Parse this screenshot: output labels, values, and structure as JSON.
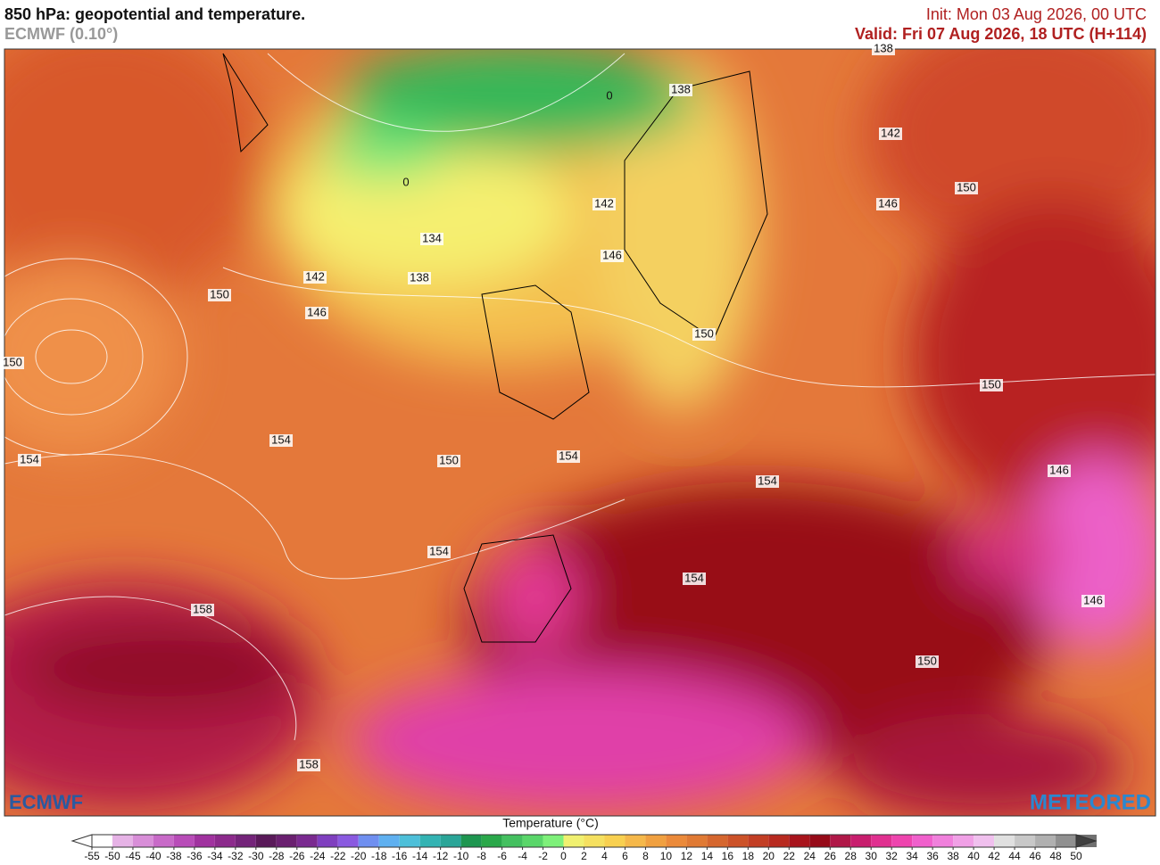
{
  "header": {
    "title": "850 hPa: geopotential and temperature.",
    "subtitle": "ECMWF (0.10°)",
    "init": "Init: Mon 03 Aug 2026, 00 UTC",
    "valid": "Valid: Fri 07 Aug 2026, 18 UTC (H+114)"
  },
  "map": {
    "contour_labels": [
      138,
      0,
      138,
      142,
      0,
      150,
      142,
      146,
      134,
      146,
      142,
      138,
      150,
      146,
      150,
      150,
      150,
      154,
      154,
      150,
      154,
      146,
      154,
      154,
      154,
      146,
      158,
      150,
      158
    ]
  },
  "logos": {
    "left": "ECMWF",
    "right": "METEORED"
  },
  "legend": {
    "title": "Temperature (°C)",
    "ticks": [
      -55,
      -50,
      -45,
      -40,
      -38,
      -36,
      -34,
      -32,
      -30,
      -28,
      -26,
      -24,
      -22,
      -20,
      -18,
      -16,
      -14,
      -12,
      -10,
      -8,
      -6,
      -4,
      -2,
      0,
      2,
      4,
      6,
      8,
      10,
      12,
      14,
      16,
      18,
      20,
      22,
      24,
      26,
      28,
      30,
      32,
      34,
      36,
      38,
      40,
      42,
      44,
      46,
      48,
      50
    ],
    "colors": [
      "#ffffff",
      "#e6b3e6",
      "#d88ed8",
      "#c86ac8",
      "#b84cb8",
      "#a0329f",
      "#8c2a8c",
      "#74247a",
      "#5a1a5a",
      "#6a2070",
      "#7a2a90",
      "#7f3fbf",
      "#8a5ae0",
      "#6f8ff0",
      "#5fb0f0",
      "#4dbfd9",
      "#33b3b3",
      "#2aa598",
      "#1e9650",
      "#2aa84a",
      "#44c060",
      "#5ad66a",
      "#7ef07a",
      "#f0f070",
      "#f5e060",
      "#f8d050",
      "#f5b84a",
      "#f0a040",
      "#eb8a3a",
      "#e07a34",
      "#d5662e",
      "#cc5228",
      "#c23e24",
      "#b82a20",
      "#a8141c",
      "#960a18",
      "#b01848",
      "#c81e6e",
      "#e03090",
      "#ee44ae",
      "#f060cc",
      "#f080dc",
      "#f0a0e6",
      "#f0c0ee",
      "#e0e0e0",
      "#c8c8c8",
      "#b0b0b0",
      "#909090",
      "#707070"
    ]
  }
}
